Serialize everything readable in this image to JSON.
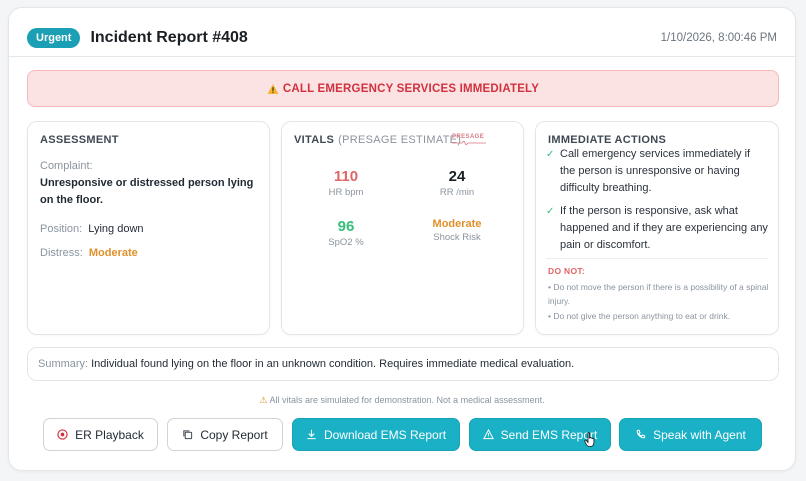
{
  "header": {
    "badge": "Urgent",
    "title": "Incident Report #408",
    "timestamp": "1/10/2026, 8:00:46 PM"
  },
  "alert": {
    "icon": "warning-icon",
    "text": "CALL EMERGENCY SERVICES IMMEDIATELY"
  },
  "assessment": {
    "title": "ASSESSMENT",
    "complaint_label": "Complaint:",
    "complaint_value": "Unresponsive or distressed person lying on the floor.",
    "position_label": "Position:",
    "position_value": "Lying down",
    "distress_label": "Distress:",
    "distress_value": "Moderate"
  },
  "vitals": {
    "title": "VITALS",
    "subtitle": "(PRESAGE ESTIMATE)",
    "logo_text": "PRESAGE",
    "hr_value": "110",
    "hr_label": "HR bpm",
    "rr_value": "24",
    "rr_label": "RR /min",
    "spo2_value": "96",
    "spo2_label": "SpO2 %",
    "shock_value": "Moderate",
    "shock_label": "Shock Risk"
  },
  "actions": {
    "title": "IMMEDIATE ACTIONS",
    "items": [
      "Call emergency services immediately if the person is unresponsive or having difficulty breathing.",
      "If the person is responsive, ask what happened and if they are experiencing any pain or discomfort."
    ],
    "donot_title": "DO NOT:",
    "donot_items": [
      "• Do not move the person if there is a possibility of a spinal injury.",
      "• Do not give the person anything to eat or drink."
    ]
  },
  "summary": {
    "label": "Summary:",
    "text": "Individual found lying on the floor in an unknown condition. Requires immediate medical evaluation."
  },
  "disclaimer": {
    "icon": "warning-icon",
    "text": "All vitals are simulated for demonstration. Not a medical assessment."
  },
  "buttons": {
    "er_playback": "ER Playback",
    "copy_report": "Copy Report",
    "download_ems": "Download EMS Report",
    "send_ems": "Send EMS Report",
    "speak_agent": "Speak with Agent"
  },
  "colors": {
    "accent": "#1ab0c6",
    "danger": "#d1313f",
    "warning": "#e0912d",
    "success": "#35c07a"
  }
}
